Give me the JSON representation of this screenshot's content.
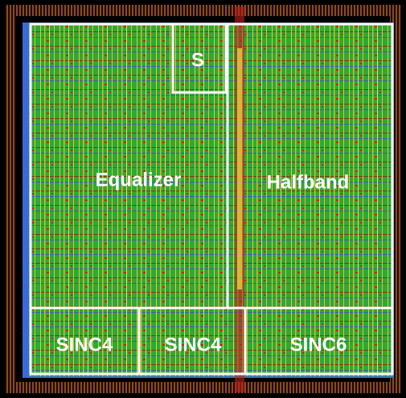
{
  "regions": [
    {
      "label": "S"
    },
    {
      "label": "Equalizer"
    },
    {
      "label": "Halfband"
    },
    {
      "label": "SINC4"
    },
    {
      "label": "SINC4"
    },
    {
      "label": "SINC6"
    }
  ]
}
